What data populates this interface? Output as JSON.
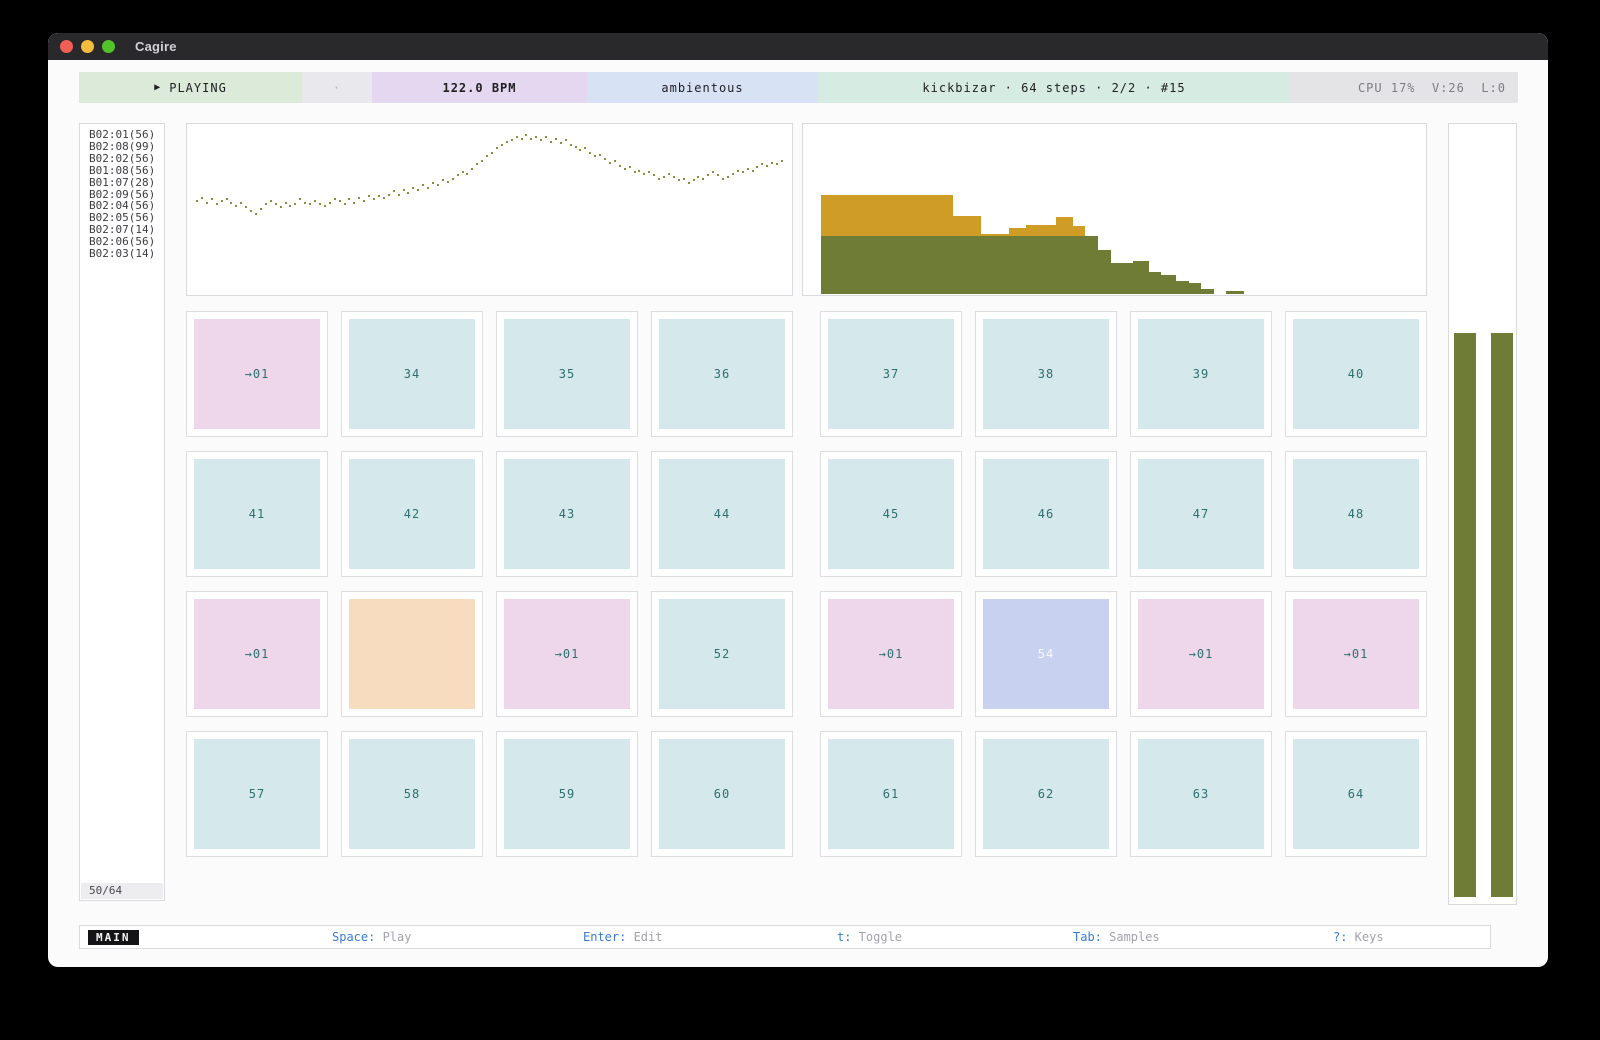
{
  "window": {
    "title": "Cagire"
  },
  "header": {
    "transport": {
      "play_icon": "▶",
      "label": "PLAYING"
    },
    "divider_dot": "·",
    "bpm": "122.0 BPM",
    "pack": "ambientous",
    "pattern_info": "kickbizar · 64 steps · 2/2 · #15",
    "stats": "CPU 17%  V:26  L:0"
  },
  "sidebar": {
    "items": [
      "B02:01(56)",
      "B02:08(99)",
      "B02:02(56)",
      "B01:08(56)",
      "B01:07(28)",
      "B02:09(56)",
      "B02:04(56)",
      "B02:05(56)",
      "B02:07(14)",
      "B02:06(56)",
      "B02:03(14)"
    ],
    "counter": "50/64"
  },
  "chart_data": [
    {
      "type": "scatter",
      "name": "pitch-wave",
      "color": "#8b8d3c",
      "y_values": [
        0.45,
        0.43,
        0.46,
        0.44,
        0.47,
        0.45,
        0.44,
        0.46,
        0.48,
        0.46,
        0.49,
        0.51,
        0.53,
        0.5,
        0.47,
        0.45,
        0.47,
        0.49,
        0.46,
        0.48,
        0.47,
        0.44,
        0.46,
        0.47,
        0.45,
        0.47,
        0.48,
        0.46,
        0.44,
        0.45,
        0.47,
        0.44,
        0.46,
        0.43,
        0.45,
        0.42,
        0.44,
        0.42,
        0.43,
        0.41,
        0.39,
        0.41,
        0.38,
        0.4,
        0.37,
        0.38,
        0.35,
        0.37,
        0.34,
        0.35,
        0.32,
        0.33,
        0.31,
        0.29,
        0.27,
        0.28,
        0.25,
        0.22,
        0.2,
        0.17,
        0.15,
        0.12,
        0.1,
        0.08,
        0.07,
        0.05,
        0.06,
        0.04,
        0.06,
        0.05,
        0.07,
        0.05,
        0.08,
        0.06,
        0.09,
        0.07,
        0.1,
        0.11,
        0.13,
        0.12,
        0.15,
        0.17,
        0.16,
        0.19,
        0.21,
        0.2,
        0.23,
        0.25,
        0.24,
        0.27,
        0.26,
        0.28,
        0.27,
        0.29,
        0.31,
        0.3,
        0.28,
        0.3,
        0.32,
        0.31,
        0.34,
        0.32,
        0.3,
        0.31,
        0.29,
        0.27,
        0.29,
        0.31,
        0.3,
        0.28,
        0.26,
        0.27,
        0.25,
        0.26,
        0.24,
        0.22,
        0.23,
        0.21,
        0.22,
        0.2
      ]
    },
    {
      "type": "bar-stacked",
      "name": "sample-histogram",
      "green_color": "#6e7c35",
      "yellow_color": "#cf9c26",
      "green_segments": [
        [
          18,
          295,
          58
        ],
        [
          295,
          308,
          44
        ],
        [
          308,
          330,
          31
        ],
        [
          330,
          346,
          33
        ],
        [
          346,
          358,
          22
        ],
        [
          358,
          373,
          19
        ],
        [
          373,
          386,
          13
        ],
        [
          386,
          398,
          11
        ],
        [
          398,
          411,
          5
        ],
        [
          423,
          441,
          3
        ]
      ],
      "yellow_base": 58,
      "yellow_segments": [
        [
          18,
          150,
          41
        ],
        [
          150,
          178,
          20
        ],
        [
          178,
          206,
          2
        ],
        [
          206,
          223,
          8
        ],
        [
          223,
          253,
          11
        ],
        [
          253,
          270,
          19
        ],
        [
          270,
          282,
          10
        ]
      ]
    },
    {
      "type": "meter",
      "name": "level-meters",
      "color": "#6e7c35",
      "values": [
        0.735,
        0.735
      ],
      "bar_x": [
        5,
        42
      ]
    }
  ],
  "grid": {
    "first_step": 33,
    "colors": {
      "step": "#d5e8ec",
      "jump": "#eed7ea",
      "hold": "#f8dcc0",
      "active": "#c9d1f1"
    },
    "cells": [
      {
        "label": "→01",
        "type": "jump"
      },
      {
        "label": "34",
        "type": "step"
      },
      {
        "label": "35",
        "type": "step"
      },
      {
        "label": "36",
        "type": "step"
      },
      {
        "label": "37",
        "type": "step"
      },
      {
        "label": "38",
        "type": "step"
      },
      {
        "label": "39",
        "type": "step"
      },
      {
        "label": "40",
        "type": "step"
      },
      {
        "label": "41",
        "type": "step"
      },
      {
        "label": "42",
        "type": "step"
      },
      {
        "label": "43",
        "type": "step"
      },
      {
        "label": "44",
        "type": "step"
      },
      {
        "label": "45",
        "type": "step"
      },
      {
        "label": "46",
        "type": "step"
      },
      {
        "label": "47",
        "type": "step"
      },
      {
        "label": "48",
        "type": "step"
      },
      {
        "label": "→01",
        "type": "jump"
      },
      {
        "label": "",
        "type": "hold"
      },
      {
        "label": "→01",
        "type": "jump"
      },
      {
        "label": "52",
        "type": "step"
      },
      {
        "label": "→01",
        "type": "jump"
      },
      {
        "label": "54",
        "type": "active"
      },
      {
        "label": "→01",
        "type": "jump"
      },
      {
        "label": "→01",
        "type": "jump"
      },
      {
        "label": "57",
        "type": "step"
      },
      {
        "label": "58",
        "type": "step"
      },
      {
        "label": "59",
        "type": "step"
      },
      {
        "label": "60",
        "type": "step"
      },
      {
        "label": "61",
        "type": "step"
      },
      {
        "label": "62",
        "type": "step"
      },
      {
        "label": "63",
        "type": "step"
      },
      {
        "label": "64",
        "type": "step"
      }
    ]
  },
  "statusbar": {
    "mode": "MAIN",
    "hints": [
      {
        "key": "Space",
        "label": "Play"
      },
      {
        "key": "Enter",
        "label": "Edit"
      },
      {
        "key": "t",
        "label": "Toggle"
      },
      {
        "key": "Tab",
        "label": "Samples"
      },
      {
        "key": "?",
        "label": "Keys"
      }
    ]
  }
}
